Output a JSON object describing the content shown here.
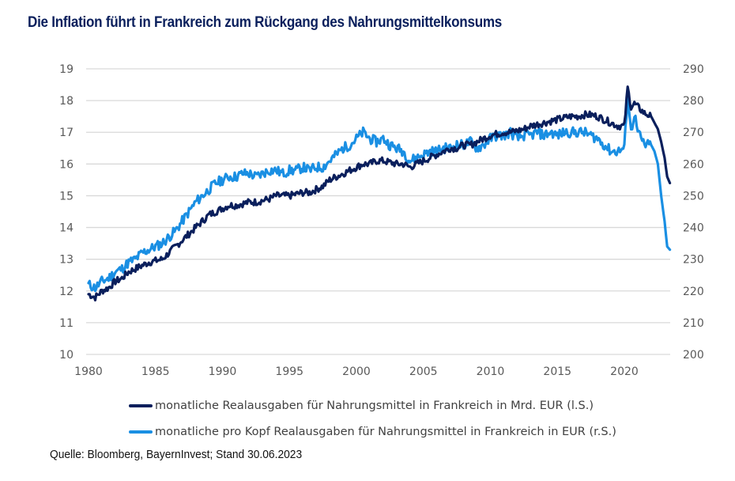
{
  "colors": {
    "title": "#0a1f5c",
    "series_dark": "#0a1f5c",
    "series_light": "#1a8fe3",
    "grid": "#d9d9d9",
    "tick": "#595959"
  },
  "chart_data": {
    "type": "line",
    "title": "Die Inflation führt in Frankreich zum Rückgang des Nahrungsmittelkonsums",
    "xlabel": "",
    "ylabel_left": "",
    "ylabel_right": "",
    "xlim": [
      1980,
      2023.5
    ],
    "ylim_left": [
      10,
      19
    ],
    "ylim_right": [
      200,
      290
    ],
    "grid": true,
    "x_ticks": [
      "1980",
      "1985",
      "1990",
      "1995",
      "2000",
      "2005",
      "2010",
      "2015",
      "2020"
    ],
    "y_ticks_left": [
      "10",
      "11",
      "12",
      "13",
      "14",
      "15",
      "16",
      "17",
      "18",
      "19"
    ],
    "y_ticks_right": [
      "200",
      "210",
      "220",
      "230",
      "240",
      "250",
      "260",
      "270",
      "280",
      "290"
    ],
    "legend_position": "bottom",
    "x": [
      1980.0,
      1980.5,
      1981.0,
      1981.5,
      1982.0,
      1982.5,
      1983.0,
      1983.5,
      1984.0,
      1984.5,
      1985.0,
      1985.5,
      1986.0,
      1986.5,
      1987.0,
      1987.5,
      1988.0,
      1988.5,
      1989.0,
      1989.5,
      1990.0,
      1990.5,
      1991.0,
      1991.5,
      1992.0,
      1992.5,
      1993.0,
      1993.5,
      1994.0,
      1994.5,
      1995.0,
      1995.5,
      1996.0,
      1996.5,
      1997.0,
      1997.5,
      1998.0,
      1998.5,
      1999.0,
      1999.5,
      2000.0,
      2000.5,
      2001.0,
      2001.5,
      2002.0,
      2002.5,
      2003.0,
      2003.5,
      2004.0,
      2004.5,
      2005.0,
      2005.5,
      2006.0,
      2006.5,
      2007.0,
      2007.5,
      2008.0,
      2008.5,
      2009.0,
      2009.5,
      2010.0,
      2010.5,
      2011.0,
      2011.5,
      2012.0,
      2012.5,
      2013.0,
      2013.5,
      2014.0,
      2014.5,
      2015.0,
      2015.5,
      2016.0,
      2016.5,
      2017.0,
      2017.5,
      2018.0,
      2018.5,
      2019.0,
      2019.5,
      2020.0,
      2020.25,
      2020.5,
      2020.75,
      2021.0,
      2021.5,
      2022.0,
      2022.25,
      2022.5,
      2022.75,
      2023.0,
      2023.2,
      2023.4
    ],
    "series": [
      {
        "name": "monatliche Realausgaben für Nahrungsmittel in Frankreich in Mrd. EUR (l.S.)",
        "axis": "left",
        "values": [
          11.9,
          11.8,
          12.0,
          12.1,
          12.3,
          12.4,
          12.6,
          12.7,
          12.8,
          12.9,
          12.95,
          13.0,
          13.2,
          13.4,
          13.6,
          13.8,
          14.0,
          14.2,
          14.4,
          14.5,
          14.6,
          14.7,
          14.7,
          14.75,
          14.8,
          14.8,
          14.85,
          14.9,
          15.0,
          15.0,
          15.0,
          15.05,
          15.1,
          15.1,
          15.2,
          15.3,
          15.5,
          15.6,
          15.7,
          15.8,
          15.9,
          16.0,
          16.0,
          16.1,
          16.1,
          16.05,
          16.0,
          16.0,
          15.9,
          16.0,
          16.1,
          16.2,
          16.3,
          16.4,
          16.5,
          16.5,
          16.6,
          16.6,
          16.7,
          16.8,
          16.9,
          16.95,
          17.0,
          17.0,
          17.05,
          17.1,
          17.2,
          17.25,
          17.3,
          17.35,
          17.4,
          17.45,
          17.5,
          17.5,
          17.55,
          17.55,
          17.5,
          17.4,
          17.3,
          17.2,
          17.2,
          18.4,
          17.8,
          17.9,
          17.8,
          17.6,
          17.5,
          17.3,
          17.1,
          16.7,
          16.2,
          15.6,
          15.4
        ]
      },
      {
        "name": "monatliche pro Kopf Realausgaben für Nahrungsmittel in Frankreich in EUR (r.S.)",
        "axis": "right",
        "values": [
          222,
          221,
          223,
          224,
          226,
          227,
          229,
          230,
          232,
          233,
          234,
          235,
          237,
          239,
          242,
          245,
          248,
          250,
          252,
          254,
          255,
          256,
          256,
          257,
          257,
          256,
          257,
          258,
          258,
          257,
          258,
          258,
          259,
          258,
          259,
          259,
          261,
          263,
          265,
          266,
          268,
          270,
          268,
          267,
          268,
          266,
          265,
          264,
          261,
          262,
          263,
          264,
          264,
          265,
          265,
          266,
          266,
          267,
          265,
          266,
          268,
          269,
          269,
          270,
          268,
          269,
          269,
          270,
          269,
          270,
          269,
          270,
          270,
          270,
          270,
          269,
          268,
          266,
          264,
          264,
          265,
          282,
          270,
          276,
          270,
          266,
          266,
          264,
          260,
          250,
          242,
          234,
          233
        ]
      }
    ]
  },
  "legend": {
    "items": [
      {
        "label": "monatliche Realausgaben für Nahrungsmittel in Frankreich in Mrd. EUR (l.S.)"
      },
      {
        "label": "monatliche pro Kopf Realausgaben für Nahrungsmittel in Frankreich in EUR (r.S.)"
      }
    ]
  },
  "source": "Quelle: Bloomberg, BayernInvest; Stand 30.06.2023"
}
